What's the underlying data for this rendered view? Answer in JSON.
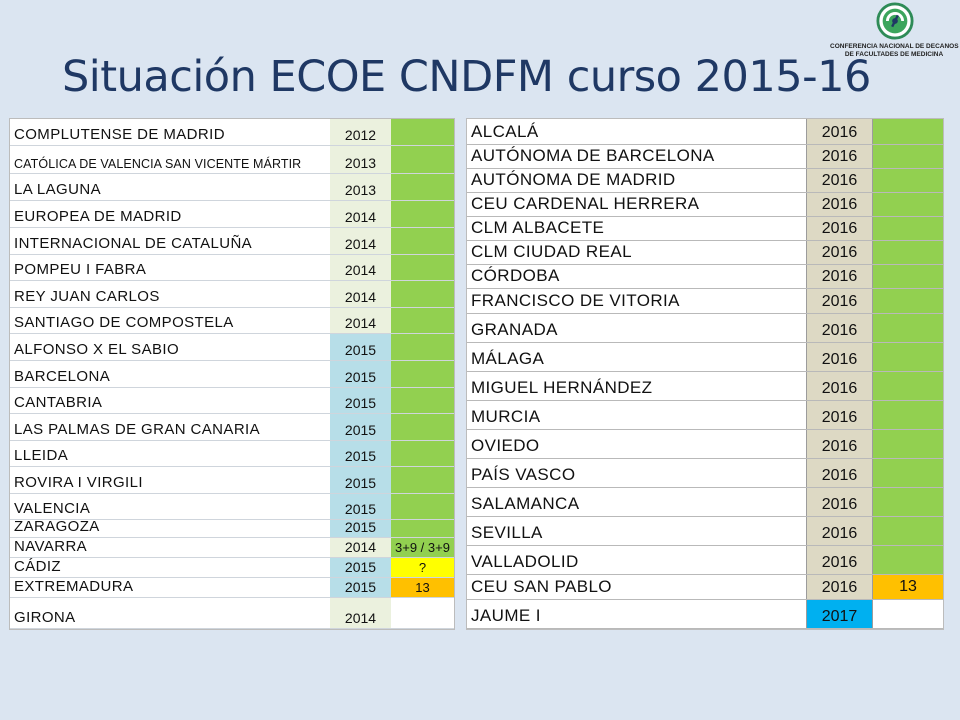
{
  "title": "Situación ECOE CNDFM curso 2015-16",
  "logo": {
    "line1": "CONFERENCIA NACIONAL DE DECANOS",
    "line2": "DE FACULTADES DE MEDICINA",
    "icon": "cndfm-logo-icon"
  },
  "colors": {
    "title": "#1f3864",
    "background": "#dbe5f1",
    "year_2012_2014": "#ebf1de",
    "year_2015": "#b7dee8",
    "year_2016": "#ddd9c4",
    "year_2017": "#00b0f0",
    "status_green": "#92d050",
    "status_yellow": "#ffff00",
    "status_orange": "#ffc000"
  },
  "left_table": {
    "rows": [
      {
        "name": "COMPLUTENSE DE MADRID",
        "year": "2012",
        "status": ""
      },
      {
        "name": "CATÓLICA DE VALENCIA SAN VICENTE MÁRTIR",
        "year": "2013",
        "status": ""
      },
      {
        "name": "LA LAGUNA",
        "year": "2013",
        "status": ""
      },
      {
        "name": "EUROPEA DE MADRID",
        "year": "2014",
        "status": ""
      },
      {
        "name": "INTERNACIONAL DE CATALUÑA",
        "year": "2014",
        "status": ""
      },
      {
        "name": "POMPEU I FABRA",
        "year": "2014",
        "status": ""
      },
      {
        "name": "REY JUAN CARLOS",
        "year": "2014",
        "status": ""
      },
      {
        "name": "SANTIAGO DE COMPOSTELA",
        "year": "2014",
        "status": ""
      },
      {
        "name": "ALFONSO X EL SABIO",
        "year": "2015",
        "status": ""
      },
      {
        "name": "BARCELONA",
        "year": "2015",
        "status": ""
      },
      {
        "name": "CANTABRIA",
        "year": "2015",
        "status": ""
      },
      {
        "name": "LAS PALMAS DE GRAN CANARIA",
        "year": "2015",
        "status": ""
      },
      {
        "name": "LLEIDA",
        "year": "2015",
        "status": ""
      },
      {
        "name": "ROVIRA I VIRGILI",
        "year": "2015",
        "status": ""
      },
      {
        "name": "VALENCIA",
        "year": "2015",
        "status": ""
      },
      {
        "name": "ZARAGOZA",
        "year": "2015",
        "status": ""
      },
      {
        "name": "NAVARRA",
        "year": "2014",
        "status": "3+9 / 3+9"
      },
      {
        "name": "CÁDIZ",
        "year": "2015",
        "status": "?"
      },
      {
        "name": "EXTREMADURA",
        "year": "2015",
        "status": "13"
      },
      {
        "name": "GIRONA",
        "year": "2014",
        "status": ""
      }
    ]
  },
  "right_table": {
    "rows": [
      {
        "name": "ALCALÁ",
        "year": "2016",
        "status": ""
      },
      {
        "name": "AUTÓNOMA DE BARCELONA",
        "year": "2016",
        "status": ""
      },
      {
        "name": "AUTÓNOMA DE MADRID",
        "year": "2016",
        "status": ""
      },
      {
        "name": "CEU CARDENAL HERRERA",
        "year": "2016",
        "status": ""
      },
      {
        "name": "CLM ALBACETE",
        "year": "2016",
        "status": ""
      },
      {
        "name": "CLM CIUDAD REAL",
        "year": "2016",
        "status": ""
      },
      {
        "name": "CÓRDOBA",
        "year": "2016",
        "status": ""
      },
      {
        "name": "FRANCISCO DE VITORIA",
        "year": "2016",
        "status": ""
      },
      {
        "name": "GRANADA",
        "year": "2016",
        "status": ""
      },
      {
        "name": "MÁLAGA",
        "year": "2016",
        "status": ""
      },
      {
        "name": "MIGUEL HERNÁNDEZ",
        "year": "2016",
        "status": ""
      },
      {
        "name": "MURCIA",
        "year": "2016",
        "status": ""
      },
      {
        "name": "OVIEDO",
        "year": "2016",
        "status": ""
      },
      {
        "name": "PAÍS VASCO",
        "year": "2016",
        "status": ""
      },
      {
        "name": "SALAMANCA",
        "year": "2016",
        "status": ""
      },
      {
        "name": "SEVILLA",
        "year": "2016",
        "status": ""
      },
      {
        "name": "VALLADOLID",
        "year": "2016",
        "status": ""
      },
      {
        "name": "CEU SAN PABLO",
        "year": "2016",
        "status": "13"
      },
      {
        "name": "JAUME I",
        "year": "2017",
        "status": ""
      }
    ]
  }
}
